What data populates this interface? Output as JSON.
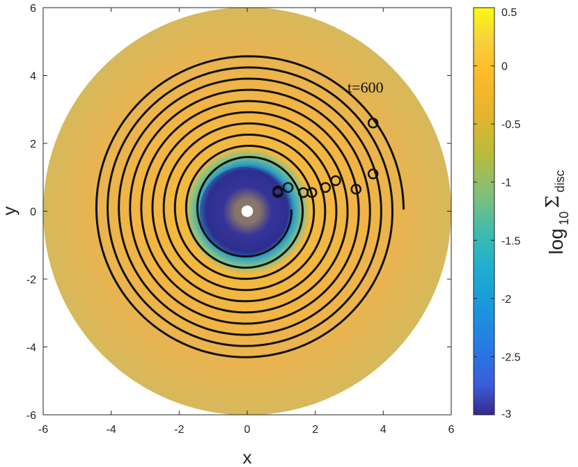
{
  "chart_data": {
    "type": "heatmap",
    "title": "",
    "xlabel": "x",
    "ylabel": "y",
    "xlim": [
      -6,
      6
    ],
    "ylim": [
      -6,
      6
    ],
    "xticks": [
      "-6",
      "-4",
      "-2",
      "0",
      "2",
      "4",
      "6"
    ],
    "yticks": [
      "6",
      "4",
      "2",
      "0",
      "-2",
      "-4",
      "-6"
    ],
    "disc_outer_radius": 6,
    "colorbar": {
      "label": "log",
      "label_sub": "10",
      "label_symbol": "Σ",
      "label_symbol_sub": "disc",
      "clim": [
        -3,
        0.5
      ],
      "ticks": [
        "0.5",
        "0",
        "-0.5",
        "-1",
        "-1.5",
        "-2",
        "-2.5",
        "-3"
      ],
      "colormap": "parula"
    },
    "annotation": "t=600",
    "planet_positions": [
      {
        "x": 3.7,
        "y": 2.6
      },
      {
        "x": 3.7,
        "y": 1.1
      },
      {
        "x": 3.2,
        "y": 0.65
      },
      {
        "x": 2.6,
        "y": 0.9
      },
      {
        "x": 2.3,
        "y": 0.7
      },
      {
        "x": 1.9,
        "y": 0.55
      },
      {
        "x": 1.65,
        "y": 0.55
      },
      {
        "x": 1.2,
        "y": 0.7
      },
      {
        "x": 0.9,
        "y": 0.6
      },
      {
        "x": 0.9,
        "y": 0.55
      }
    ],
    "orbit_track": {
      "x0": 0.0,
      "y0": 0.05,
      "r_start": 4.6,
      "r_end": 1.3,
      "turns": 10
    }
  }
}
